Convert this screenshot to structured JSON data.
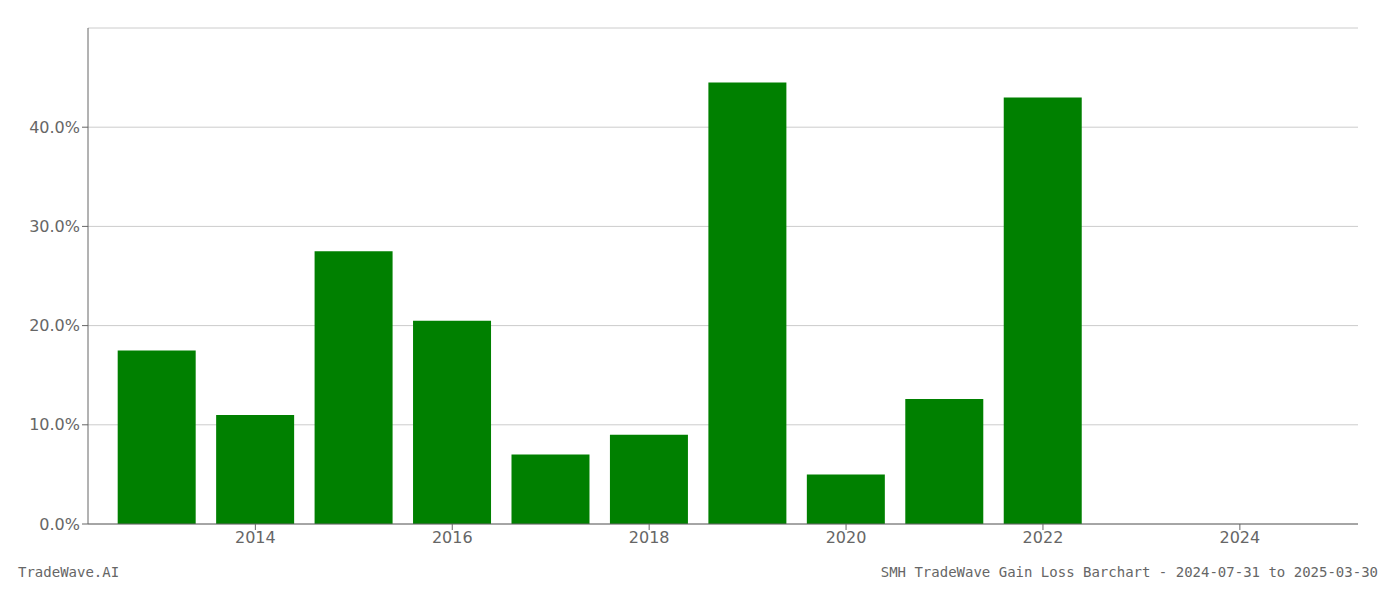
{
  "chart_data": {
    "type": "bar",
    "title": "SMH TradeWave Gain Loss Barchart - 2024-07-31 to 2025-03-30",
    "annotations": [
      "TradeWave.AI"
    ],
    "x": [
      2013,
      2014,
      2015,
      2016,
      2017,
      2018,
      2019,
      2020,
      2021,
      2022,
      2023
    ],
    "values": [
      0.175,
      0.11,
      0.275,
      0.205,
      0.07,
      0.09,
      0.445,
      0.05,
      0.126,
      0.43,
      0.0
    ],
    "color": "#008000",
    "xlim": [
      2012.3,
      2025.2
    ],
    "xticks": [
      2014,
      2016,
      2018,
      2020,
      2022,
      2024
    ],
    "ylim": [
      0.0,
      0.5
    ],
    "yticks": [
      {
        "value": 0.0,
        "label": "0.0%"
      },
      {
        "value": 0.1,
        "label": "10.0%"
      },
      {
        "value": 0.2,
        "label": "20.0%"
      },
      {
        "value": 0.3,
        "label": "30.0%"
      },
      {
        "value": 0.4,
        "label": "40.0%"
      }
    ],
    "grid": "y"
  }
}
